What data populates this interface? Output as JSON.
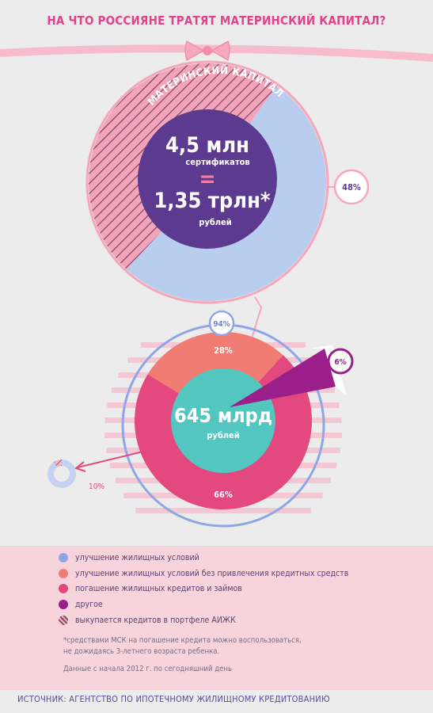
{
  "title": "НА ЧТО РОССИЯНЕ ТРАТЯТ МАТЕРИНСКИЙ КАПИТАЛ?",
  "top_circle": {
    "arc_label": "МАТЕРИНСКИЙ КАПИТАЛ",
    "value1": "4,5 млн",
    "unit1": "сертификатов",
    "equals": "=",
    "value2": "1,35 трлн*",
    "unit2": "рублей"
  },
  "bottom_circle": {
    "value": "645 млрд",
    "unit": "рублей"
  },
  "chart_data": [
    {
      "type": "pie",
      "values": [
        52,
        48
      ],
      "slice_labels": [
        "",
        "48%"
      ],
      "colors": [
        "#b9cdee",
        "#f07ea2"
      ]
    },
    {
      "type": "pie",
      "categories": [
        "погашение жилищных кредитов и займов",
        "улучшение жилищных условий без привлечения кредитных средств",
        "другое"
      ],
      "values": [
        66,
        28,
        6
      ],
      "slice_labels": [
        "66%",
        "28%",
        "6%"
      ],
      "ring_label": "94%",
      "outer_label": "10%",
      "colors": [
        "#e3497e",
        "#f17c74",
        "#9a1f8b"
      ]
    }
  ],
  "legend": [
    {
      "label": "улучшение жилищных условий",
      "color": "#8fa6e6"
    },
    {
      "label": "улучшение жилищных условий без привлечения кредитных средств",
      "color": "#f17c74"
    },
    {
      "label": "погашение жилищных кредитов и займов",
      "color": "#e3497e"
    },
    {
      "label": "другое",
      "color": "#9a1f8b"
    },
    {
      "label": "выкупается кредитов в портфеле АИЖК",
      "color": "#9c6373"
    }
  ],
  "note": {
    "line1": "*средствами МСК  на погашение кредита можно воспользоваться,",
    "line2": "не дожидаясь 3-летнего возраста ребенка.",
    "line3": "Данные с начала 2012 г. по сегодняшний день"
  },
  "source": "ИСТОЧНИК: АГЕНТСТВО ПО ИПОТЕЧНОМУ ЖИЛИЩНОМУ КРЕДИТОВАНИЮ"
}
